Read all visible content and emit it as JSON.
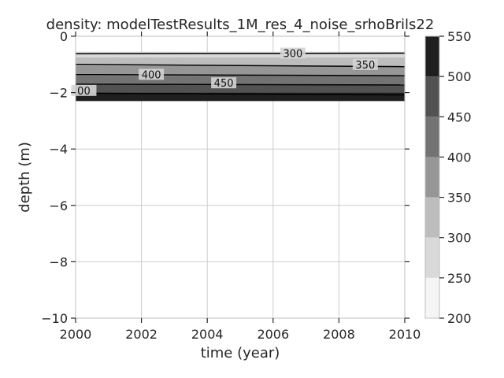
{
  "chart_data": {
    "type": "contour",
    "title": "density: modelTestResults_1M_res_4_noise_srhoBrils22",
    "xlabel": "time (year)",
    "ylabel": "depth (m)",
    "xlim": [
      2000,
      2010
    ],
    "ylim": [
      -10,
      0
    ],
    "xticks": [
      2000,
      2002,
      2004,
      2006,
      2008,
      2010
    ],
    "yticks": [
      0,
      -2,
      -4,
      -6,
      -8,
      -10
    ],
    "grid": true,
    "colormap": "Greys",
    "bands": [
      {
        "from": -0.55,
        "to": -0.75,
        "value_range": [
          250,
          300
        ],
        "color": "#d9d9d9"
      },
      {
        "from": -0.75,
        "to": -1.05,
        "value_range": [
          300,
          350
        ],
        "color": "#bdbdbd"
      },
      {
        "from": -1.05,
        "to": -1.4,
        "value_range": [
          350,
          400
        ],
        "color": "#969696"
      },
      {
        "from": -1.4,
        "to": -1.72,
        "value_range": [
          400,
          450
        ],
        "color": "#737373"
      },
      {
        "from": -1.72,
        "to": -2.0,
        "value_range": [
          450,
          500
        ],
        "color": "#525252"
      },
      {
        "from": -2.0,
        "to": -2.3,
        "value_range": [
          500,
          550
        ],
        "color": "#1f1f1f"
      }
    ],
    "contour_lines": [
      {
        "level": 300,
        "y_start": -0.62,
        "y_end": -0.6
      },
      {
        "level": 350,
        "y_start": -1.0,
        "y_end": -1.08
      },
      {
        "level": 400,
        "y_start": -1.36,
        "y_end": -1.4
      },
      {
        "level": 450,
        "y_start": -1.7,
        "y_end": -1.73
      },
      {
        "level": 500,
        "y_start": -2.02,
        "y_end": -2.08
      }
    ],
    "contour_labels": [
      {
        "text": "300",
        "x": 2006.6,
        "y": -0.63
      },
      {
        "text": "350",
        "x": 2008.8,
        "y": -1.03
      },
      {
        "text": "400",
        "x": 2002.3,
        "y": -1.38
      },
      {
        "text": "450",
        "x": 2004.5,
        "y": -1.68
      },
      {
        "text": "00",
        "x": 2000.25,
        "y": -1.95
      }
    ],
    "colorbar": {
      "ticks": [
        550,
        500,
        450,
        400,
        350,
        300,
        250,
        200
      ],
      "levels": [
        {
          "range": [
            500,
            550
          ],
          "color": "#1f1f1f"
        },
        {
          "range": [
            450,
            500
          ],
          "color": "#525252"
        },
        {
          "range": [
            400,
            450
          ],
          "color": "#737373"
        },
        {
          "range": [
            350,
            400
          ],
          "color": "#969696"
        },
        {
          "range": [
            300,
            350
          ],
          "color": "#bdbdbd"
        },
        {
          "range": [
            250,
            300
          ],
          "color": "#d9d9d9"
        },
        {
          "range": [
            200,
            250
          ],
          "color": "#f5f5f5"
        }
      ]
    }
  }
}
